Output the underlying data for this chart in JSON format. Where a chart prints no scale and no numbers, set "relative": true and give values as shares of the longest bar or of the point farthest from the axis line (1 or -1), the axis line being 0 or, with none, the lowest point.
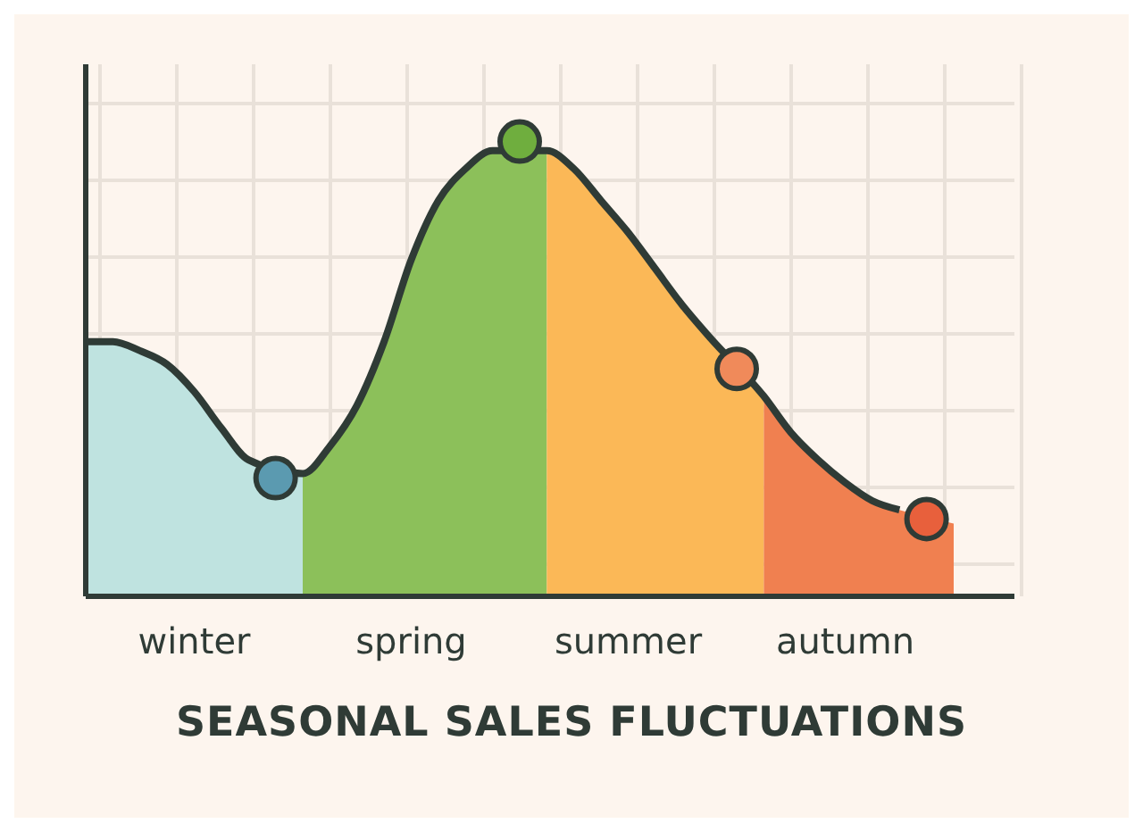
{
  "chart_data": {
    "type": "area",
    "title": "SEASONAL SALES FLUCTUATIONS",
    "relative": true,
    "grid": true,
    "legend": false,
    "tick_labels": "x",
    "categories": [
      null,
      null,
      null,
      null,
      "winter",
      null,
      null,
      null,
      null,
      null,
      null,
      null,
      "spring",
      null,
      null,
      null,
      null,
      null,
      null,
      null,
      "summer",
      null,
      null,
      null,
      null,
      null,
      null,
      null,
      "autumn",
      null,
      null,
      null,
      null
    ],
    "series": [
      {
        "color": "#bfe3e0",
        "values": [
          0.56,
          0.56,
          0.54,
          0.51,
          0.45,
          0.37,
          0.3,
          null,
          0.27,
          null,
          null,
          null,
          null,
          null,
          null,
          null,
          null,
          null,
          null,
          null,
          null,
          null,
          null,
          null,
          null,
          null,
          null,
          null,
          null,
          null,
          null,
          null,
          null
        ]
      },
      {
        "color": "#8cc05a",
        "values": [
          null,
          null,
          null,
          null,
          null,
          null,
          null,
          null,
          0.27,
          0.33,
          0.42,
          0.56,
          0.74,
          0.87,
          0.94,
          0.98,
          null,
          0.98,
          null,
          null,
          null,
          null,
          null,
          null,
          null,
          null,
          null,
          null,
          null,
          null,
          null,
          null,
          null
        ]
      },
      {
        "color": "#fbb857",
        "values": [
          null,
          null,
          null,
          null,
          null,
          null,
          null,
          null,
          null,
          null,
          null,
          null,
          null,
          null,
          null,
          null,
          null,
          0.98,
          0.94,
          0.87,
          0.8,
          0.72,
          0.64,
          0.57,
          null,
          0.44,
          null,
          null,
          null,
          null,
          null,
          null,
          null
        ]
      },
      {
        "color": "#f08050",
        "values": [
          null,
          null,
          null,
          null,
          null,
          null,
          null,
          null,
          null,
          null,
          null,
          null,
          null,
          null,
          null,
          null,
          null,
          null,
          null,
          null,
          null,
          null,
          null,
          null,
          null,
          0.44,
          0.36,
          0.3,
          0.25,
          0.21,
          0.19,
          null,
          0.16
        ]
      },
      {
        "type": "line",
        "color": "#2f3b36",
        "marker": "none",
        "values": [
          0.56,
          0.56,
          0.54,
          0.51,
          0.45,
          0.37,
          0.3,
          null,
          0.27,
          0.33,
          0.42,
          0.56,
          0.74,
          0.87,
          0.94,
          0.98,
          null,
          0.98,
          0.94,
          0.87,
          0.8,
          0.72,
          0.64,
          0.57,
          null,
          0.44,
          0.36,
          0.3,
          0.25,
          0.21,
          0.19,
          null,
          null
        ]
      },
      {
        "type": "scatter",
        "marker": "circle",
        "values": [
          null,
          null,
          null,
          null,
          null,
          null,
          null,
          0.26,
          null,
          null,
          null,
          null,
          null,
          null,
          null,
          null,
          1.0,
          null,
          null,
          null,
          null,
          null,
          null,
          null,
          0.5,
          null,
          null,
          null,
          null,
          null,
          null,
          0.17,
          null
        ],
        "colors": [
          null,
          null,
          null,
          null,
          null,
          null,
          null,
          "#5b9ab0",
          null,
          null,
          null,
          null,
          null,
          null,
          null,
          null,
          "#6fae3e",
          null,
          null,
          null,
          null,
          null,
          null,
          null,
          "#f08a5a",
          null,
          null,
          null,
          null,
          null,
          null,
          "#e8603c",
          null
        ]
      }
    ]
  }
}
